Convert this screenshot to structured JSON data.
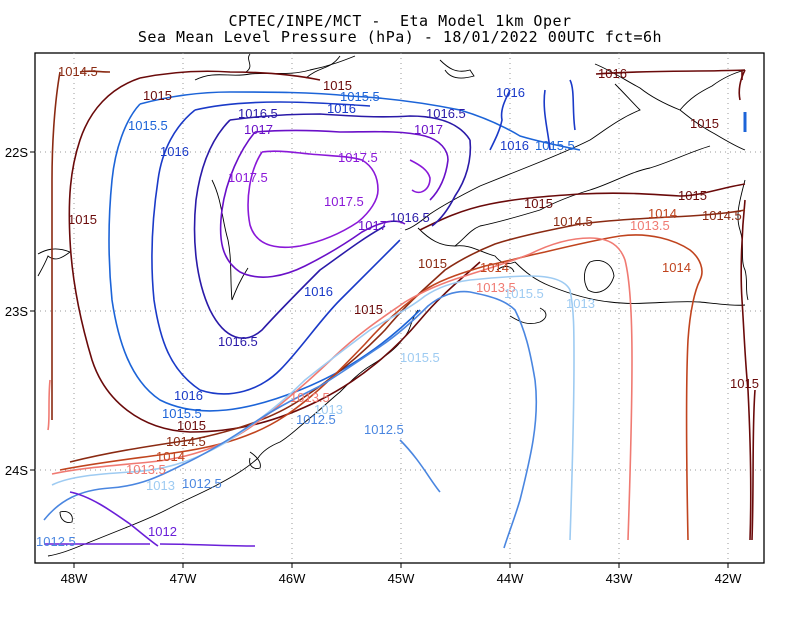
{
  "title": {
    "line1": "CPTEC/INPE/MCT -  Eta Model 1km Oper",
    "line2": "Sea Mean Level Pressure (hPa) - 18/01/2022 00UTC fct=6h"
  },
  "axes": {
    "x_ticks": [
      "48W",
      "47W",
      "46W",
      "45W",
      "44W",
      "43W",
      "42W"
    ],
    "y_ticks": [
      "22S",
      "23S",
      "24S"
    ],
    "grid": "dotted"
  },
  "contour_labels": [
    "1014.5",
    "1015",
    "1015",
    "1015.5",
    "1016",
    "1016.5",
    "1017",
    "1017.5",
    "1017.5",
    "1017.5",
    "1017",
    "1016.5",
    "1016",
    "1015.5",
    "1015",
    "1016",
    "1015.5",
    "1016",
    "1016.5",
    "1017",
    "1015",
    "1016",
    "1016.5",
    "1015",
    "1015",
    "1014.5",
    "1014",
    "1013.5",
    "1013.5",
    "1013",
    "1013",
    "1012.5",
    "1012.5",
    "1012",
    "1012.5",
    "1012.5",
    "1015",
    "1015",
    "1014.5",
    "1014",
    "1014.5",
    "1013.5",
    "1014",
    "1014",
    "1013.5",
    "1015",
    "1013",
    "1015",
    "1016",
    "1015.5",
    "1015.5",
    "1015.5",
    "1016"
  ],
  "colors": {
    "p1012": "#6a1fd8",
    "p1012_5": "#4a86e0",
    "p1013": "#9ecbf2",
    "p1013_5": "#f07a72",
    "p1014": "#c0441e",
    "p1014_5": "#8a2a12",
    "p1015": "#6a0a0a",
    "p1015_5": "#1c64d8",
    "p1016": "#1a3ac8",
    "p1016_5": "#2a1aa8",
    "p1017": "#6a10c8",
    "p1017_5": "#8a18d8"
  }
}
